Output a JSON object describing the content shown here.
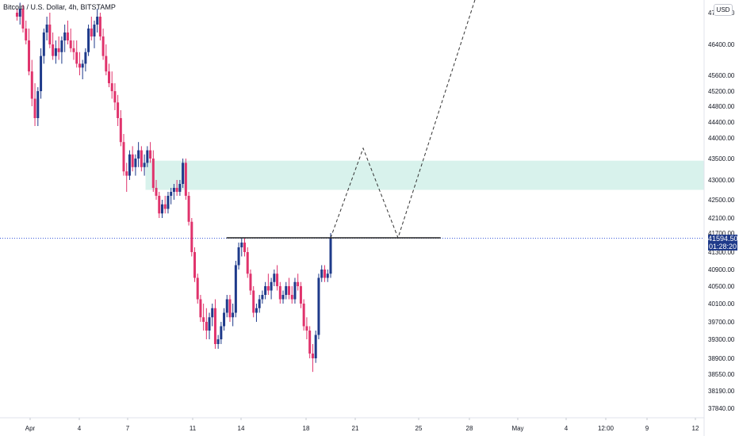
{
  "header": {
    "title": "Bitcoin / U.S. Dollar, 4h, BITSTAMP",
    "currency": "USD"
  },
  "price_scale": {
    "current_price": "41594.50",
    "countdown": "01:28:20",
    "tick_labels": [
      "47200.00",
      "46400.00",
      "45600.00",
      "45200.00",
      "44800.00",
      "44400.00",
      "44000.00",
      "43500.00",
      "43000.00",
      "42500.00",
      "42100.00",
      "41700.00",
      "41300.00",
      "40900.00",
      "40500.00",
      "40100.00",
      "39700.00",
      "39300.00",
      "38900.00",
      "38550.00",
      "38190.00",
      "37840.00"
    ]
  },
  "time_scale": {
    "tick_labels": [
      "Apr",
      "4",
      "7",
      "11",
      "14",
      "18",
      "21",
      "25",
      "28",
      "May",
      "4",
      "12:00",
      "9",
      "12"
    ]
  },
  "colors": {
    "up": "#1e3a8a",
    "down": "#e0336c",
    "zone": "#d8f2ec",
    "level": "#222222",
    "projection": "#333333",
    "price_line": "#3b5bdb"
  },
  "chart_data": {
    "type": "candlestick",
    "title": "Bitcoin / U.S. Dollar, 4h, BITSTAMP",
    "ylim": [
      37600,
      47600
    ],
    "yticks": [
      47200,
      46400,
      45600,
      45200,
      44800,
      44400,
      44000,
      43500,
      43000,
      42500,
      42100,
      41700,
      41300,
      40900,
      40500,
      40100,
      39700,
      39300,
      38900,
      38550,
      38190,
      37840
    ],
    "x_range_days": [
      1,
      43
    ],
    "xticks": [
      {
        "label": "Apr",
        "day": 1
      },
      {
        "label": "4",
        "day": 4
      },
      {
        "label": "7",
        "day": 7
      },
      {
        "label": "11",
        "day": 11
      },
      {
        "label": "14",
        "day": 14
      },
      {
        "label": "18",
        "day": 18
      },
      {
        "label": "21",
        "day": 21
      },
      {
        "label": "25",
        "day": 25
      },
      {
        "label": "28",
        "day": 28
      },
      {
        "label": "May",
        "day": 31
      },
      {
        "label": "4",
        "day": 34
      },
      {
        "label": "12:00",
        "day": 36.5
      },
      {
        "label": "9",
        "day": 39
      },
      {
        "label": "12",
        "day": 42
      }
    ],
    "current_price": 41594.5,
    "demand_zone": {
      "low": 42750,
      "high": 43450
    },
    "key_level": {
      "price": 41600,
      "from_day": 13.1,
      "to_day": 26.3
    },
    "projection_path": [
      [
        19.5,
        41600
      ],
      [
        21.5,
        43750
      ],
      [
        23.7,
        41600
      ],
      [
        28.8,
        48100
      ]
    ],
    "candles_ohlc": [
      [
        47200,
        47300,
        47000,
        47100
      ],
      [
        47100,
        47450,
        46900,
        47300
      ],
      [
        47300,
        47400,
        46700,
        46800
      ],
      [
        46800,
        47000,
        46400,
        46500
      ],
      [
        46500,
        46800,
        45600,
        45700
      ],
      [
        45700,
        46000,
        44800,
        45000
      ],
      [
        45000,
        45400,
        44300,
        44500
      ],
      [
        44500,
        45300,
        44300,
        45200
      ],
      [
        45200,
        46300,
        45000,
        46100
      ],
      [
        46100,
        46800,
        45900,
        46700
      ],
      [
        46700,
        47100,
        46500,
        46900
      ],
      [
        46900,
        47200,
        46300,
        46400
      ],
      [
        46400,
        46700,
        46000,
        46100
      ],
      [
        46100,
        46500,
        45900,
        46300
      ],
      [
        46300,
        46600,
        46000,
        46200
      ],
      [
        46200,
        46600,
        45900,
        46500
      ],
      [
        46500,
        46900,
        46200,
        46700
      ],
      [
        46700,
        47000,
        46400,
        46500
      ],
      [
        46500,
        46800,
        46200,
        46300
      ],
      [
        46300,
        46500,
        46000,
        46200
      ],
      [
        46200,
        46500,
        45800,
        45900
      ],
      [
        45900,
        46200,
        45600,
        45800
      ],
      [
        45800,
        46000,
        45500,
        45900
      ],
      [
        45900,
        46300,
        45700,
        46200
      ],
      [
        46200,
        46900,
        46100,
        46800
      ],
      [
        46800,
        47100,
        46500,
        46600
      ],
      [
        46600,
        47000,
        46300,
        46900
      ],
      [
        46900,
        47300,
        46700,
        47100
      ],
      [
        47100,
        47200,
        46500,
        46600
      ],
      [
        46600,
        46800,
        46000,
        46100
      ],
      [
        46100,
        46400,
        45600,
        45700
      ],
      [
        45700,
        45900,
        45300,
        45400
      ],
      [
        45400,
        45700,
        45000,
        45200
      ],
      [
        45200,
        45400,
        44700,
        44900
      ],
      [
        44900,
        45100,
        44300,
        44500
      ],
      [
        44500,
        44700,
        43800,
        43900
      ],
      [
        43900,
        44100,
        43100,
        43200
      ],
      [
        43200,
        43400,
        42700,
        43100
      ],
      [
        43100,
        43700,
        43000,
        43600
      ],
      [
        43600,
        43800,
        43200,
        43300
      ],
      [
        43300,
        43600,
        43100,
        43500
      ],
      [
        43500,
        43900,
        43300,
        43700
      ],
      [
        43700,
        43800,
        43200,
        43300
      ],
      [
        43300,
        43600,
        43100,
        43400
      ],
      [
        43400,
        43800,
        43300,
        43700
      ],
      [
        43700,
        43900,
        43400,
        43500
      ],
      [
        43500,
        43700,
        42700,
        42800
      ],
      [
        42800,
        43000,
        42500,
        42600
      ],
      [
        42600,
        42700,
        42100,
        42200
      ],
      [
        42200,
        42500,
        42100,
        42400
      ],
      [
        42400,
        42600,
        42200,
        42300
      ],
      [
        42300,
        42700,
        42200,
        42600
      ],
      [
        42600,
        42800,
        42400,
        42700
      ],
      [
        42700,
        42900,
        42500,
        42800
      ],
      [
        42800,
        43000,
        42600,
        42700
      ],
      [
        42700,
        43000,
        42600,
        42900
      ],
      [
        42900,
        43500,
        42800,
        43400
      ],
      [
        43400,
        43500,
        42500,
        42600
      ],
      [
        42600,
        42700,
        41900,
        42000
      ],
      [
        42000,
        42100,
        41200,
        41300
      ],
      [
        41300,
        41400,
        40600,
        40700
      ],
      [
        40700,
        40800,
        40100,
        40200
      ],
      [
        40200,
        40300,
        39700,
        39800
      ],
      [
        39800,
        40100,
        39500,
        39700
      ],
      [
        39700,
        40000,
        39300,
        39500
      ],
      [
        39500,
        39900,
        39300,
        39800
      ],
      [
        39800,
        40100,
        39600,
        40000
      ],
      [
        40000,
        40200,
        39100,
        39200
      ],
      [
        39200,
        39400,
        39100,
        39300
      ],
      [
        39300,
        39700,
        39200,
        39600
      ],
      [
        39600,
        40000,
        39500,
        39900
      ],
      [
        39900,
        40300,
        39800,
        40200
      ],
      [
        40200,
        40300,
        39700,
        39800
      ],
      [
        39800,
        40100,
        39600,
        39900
      ],
      [
        39900,
        41100,
        39800,
        41000
      ],
      [
        41000,
        41500,
        40900,
        41400
      ],
      [
        41400,
        41600,
        41200,
        41500
      ],
      [
        41500,
        41600,
        41200,
        41300
      ],
      [
        41300,
        41400,
        40700,
        40800
      ],
      [
        40800,
        40900,
        40300,
        40400
      ],
      [
        40400,
        40500,
        39800,
        39900
      ],
      [
        39900,
        40100,
        39700,
        40000
      ],
      [
        40000,
        40300,
        39900,
        40200
      ],
      [
        40200,
        40400,
        40100,
        40300
      ],
      [
        40300,
        40600,
        40200,
        40500
      ],
      [
        40500,
        40800,
        40300,
        40400
      ],
      [
        40400,
        40700,
        40200,
        40600
      ],
      [
        40600,
        40900,
        40500,
        40800
      ],
      [
        40800,
        41000,
        40400,
        40500
      ],
      [
        40500,
        40600,
        40100,
        40200
      ],
      [
        40200,
        40400,
        40100,
        40300
      ],
      [
        40300,
        40600,
        40200,
        40500
      ],
      [
        40500,
        40700,
        40200,
        40300
      ],
      [
        40300,
        40500,
        40100,
        40200
      ],
      [
        40200,
        40700,
        40100,
        40600
      ],
      [
        40600,
        40800,
        40400,
        40500
      ],
      [
        40500,
        40600,
        40000,
        40100
      ],
      [
        40100,
        40200,
        39500,
        39600
      ],
      [
        39600,
        39800,
        39300,
        39500
      ],
      [
        39500,
        39600,
        38900,
        39000
      ],
      [
        39000,
        39200,
        38600,
        38900
      ],
      [
        38900,
        39500,
        38800,
        39400
      ],
      [
        39400,
        40800,
        39300,
        40700
      ],
      [
        40700,
        41000,
        40600,
        40900
      ],
      [
        40900,
        41000,
        40600,
        40700
      ],
      [
        40700,
        40900,
        40600,
        40800
      ],
      [
        40800,
        41700,
        40700,
        41594.5
      ]
    ]
  }
}
